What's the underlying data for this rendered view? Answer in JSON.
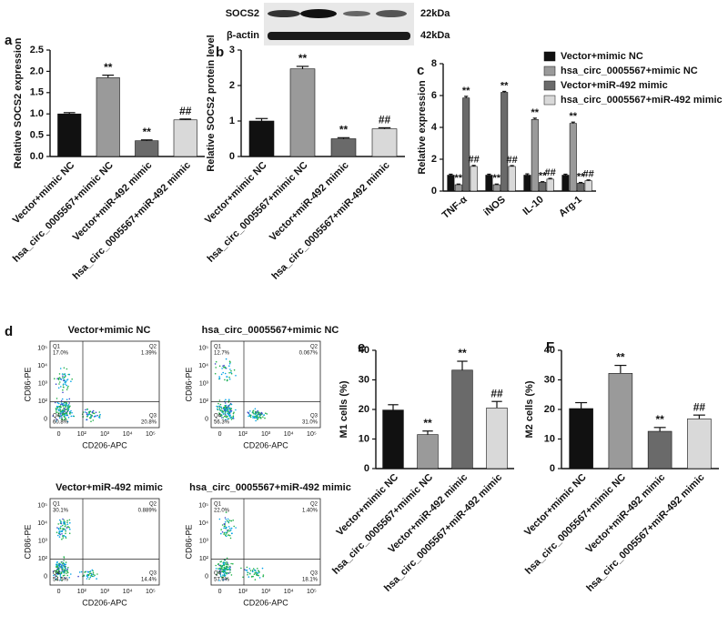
{
  "chart_data": [
    {
      "type": "bar",
      "panel": "a",
      "ylabel": "Relative SOCS2 expression",
      "categories": [
        "Vector+mimic NC",
        "hsa_circ_0005567+mimic NC",
        "Vector+miR-492 mimic",
        "hsa_circ_0005567+miR-492 mimic"
      ],
      "values": [
        1.0,
        1.85,
        0.37,
        0.86
      ],
      "errors": [
        0.03,
        0.06,
        0.02,
        0.02
      ],
      "annotations": [
        null,
        "**",
        "**",
        "##"
      ],
      "colors": [
        "#111111",
        "#9a9a9a",
        "#6a6a6a",
        "#d9d9d9"
      ],
      "ylim": [
        0,
        2.5
      ],
      "yticks": [
        {
          "value": 0,
          "label": "0.0"
        },
        0.5,
        {
          "value": 1,
          "label": "1.0"
        },
        1.5,
        {
          "value": 2,
          "label": "2.0"
        },
        2.5
      ]
    },
    {
      "type": "bar",
      "panel": "b",
      "ylabel": "Relative SOCS2 protein level",
      "categories": [
        "Vector+mimic NC",
        "hsa_circ_0005567+mimic NC",
        "Vector+miR-492 mimic",
        "hsa_circ_0005567+miR-492 mimic"
      ],
      "values": [
        1.0,
        2.47,
        0.5,
        0.78
      ],
      "errors": [
        0.07,
        0.07,
        0.03,
        0.03
      ],
      "annotations": [
        null,
        "**",
        "**",
        "##"
      ],
      "colors": [
        "#111111",
        "#9a9a9a",
        "#6a6a6a",
        "#d9d9d9"
      ],
      "ylim": [
        0,
        3
      ],
      "yticks": [
        0,
        1,
        2,
        3
      ]
    },
    {
      "type": "bar",
      "panel": "c",
      "ylabel": "Relative expression",
      "categories": [
        "TNF-α",
        "iNOS",
        "IL-10",
        "Arg-1"
      ],
      "series": [
        {
          "name": "Vector+mimic NC",
          "color": "#111111",
          "values": [
            1.0,
            1.0,
            1.0,
            1.0
          ],
          "errors": [
            0.06,
            0.06,
            0.08,
            0.06
          ],
          "annotations": [
            null,
            null,
            null,
            null
          ]
        },
        {
          "name": "hsa_circ_0005567+mimic NC",
          "color": "#9a9a9a",
          "values": [
            0.4,
            0.4,
            4.5,
            4.25
          ],
          "errors": [
            0.04,
            0.04,
            0.08,
            0.08
          ],
          "annotations": [
            "**",
            "**",
            "**",
            "**"
          ]
        },
        {
          "name": "Vector+miR-492 mimic",
          "color": "#6a6a6a",
          "values": [
            5.85,
            6.2,
            0.55,
            0.5
          ],
          "errors": [
            0.1,
            0.06,
            0.04,
            0.04
          ],
          "annotations": [
            "**",
            "**",
            "**",
            "**"
          ]
        },
        {
          "name": "hsa_circ_0005567+miR-492 mimic",
          "color": "#d9d9d9",
          "values": [
            1.55,
            1.55,
            0.75,
            0.65
          ],
          "errors": [
            0.06,
            0.05,
            0.05,
            0.05
          ],
          "annotations": [
            "##",
            "##",
            "##",
            "##"
          ]
        }
      ],
      "ylim": [
        0,
        8
      ],
      "yticks": [
        0,
        2,
        4,
        6,
        8
      ]
    },
    {
      "type": "bar",
      "panel": "e",
      "ylabel": "M1 cells (%)",
      "categories": [
        "Vector+mimic NC",
        "hsa_circ_0005567+mimic NC",
        "Vector+miR-492 mimic",
        "hsa_circ_0005567+miR-492 mimic"
      ],
      "values": [
        19.8,
        11.5,
        33.3,
        20.5
      ],
      "errors": [
        1.8,
        1.2,
        3.0,
        2.2
      ],
      "annotations": [
        null,
        "**",
        "**",
        "##"
      ],
      "colors": [
        "#111111",
        "#9a9a9a",
        "#6a6a6a",
        "#d9d9d9"
      ],
      "ylim": [
        0,
        40
      ],
      "yticks": [
        0,
        10,
        20,
        30,
        40
      ]
    },
    {
      "type": "bar",
      "panel": "F",
      "ylabel": "M2 cells (%)",
      "categories": [
        "Vector+mimic NC",
        "hsa_circ_0005567+mimic NC",
        "Vector+miR-492 mimic",
        "hsa_circ_0005567+miR-492 mimic"
      ],
      "values": [
        20.3,
        32.2,
        12.6,
        16.8
      ],
      "errors": [
        2.0,
        2.7,
        1.3,
        1.3
      ],
      "annotations": [
        null,
        "**",
        "**",
        "##"
      ],
      "colors": [
        "#111111",
        "#9a9a9a",
        "#6a6a6a",
        "#d9d9d9"
      ],
      "ylim": [
        0,
        40
      ],
      "yticks": [
        0,
        10,
        20,
        30,
        40
      ]
    }
  ],
  "blot": {
    "bands": [
      {
        "name": "SOCS2",
        "size": "22kDa"
      },
      {
        "name": "β-actin",
        "size": "42kDa"
      }
    ]
  },
  "flow_cytometry": {
    "panel": "d",
    "xlabel": "CD206-APC",
    "ylabel": "CD86-PE",
    "xtick_labels": [
      "0",
      "10²",
      "10³",
      "10⁴",
      "10⁵"
    ],
    "ytick_labels": [
      "10⁵",
      "10⁴",
      "10³",
      "10²",
      "0"
    ],
    "plots": [
      {
        "title": "Vector+mimic NC",
        "quadrants": [
          {
            "name": "Q1",
            "percent": "17.0%"
          },
          {
            "name": "Q2",
            "percent": "1.39%"
          },
          {
            "name": "Q3",
            "percent": "20.8%"
          },
          {
            "name": "Q4",
            "percent": "60.8%"
          }
        ]
      },
      {
        "title": "hsa_circ_0005567+mimic NC",
        "quadrants": [
          {
            "name": "Q1",
            "percent": "12.7%"
          },
          {
            "name": "Q2",
            "percent": "0.067%"
          },
          {
            "name": "Q3",
            "percent": "31.0%"
          },
          {
            "name": "Q4",
            "percent": "56.3%"
          }
        ]
      },
      {
        "title": "Vector+miR-492 mimic",
        "quadrants": [
          {
            "name": "Q1",
            "percent": "30.1%"
          },
          {
            "name": "Q2",
            "percent": "0.889%"
          },
          {
            "name": "Q3",
            "percent": "14.4%"
          },
          {
            "name": "Q4",
            "percent": "54.5%"
          }
        ]
      },
      {
        "title": "hsa_circ_0005567+miR-492 mimic",
        "quadrants": [
          {
            "name": "Q1",
            "percent": "22.0%"
          },
          {
            "name": "Q2",
            "percent": "1.40%"
          },
          {
            "name": "Q3",
            "percent": "18.1%"
          },
          {
            "name": "Q4",
            "percent": "57.6%"
          }
        ]
      }
    ]
  }
}
